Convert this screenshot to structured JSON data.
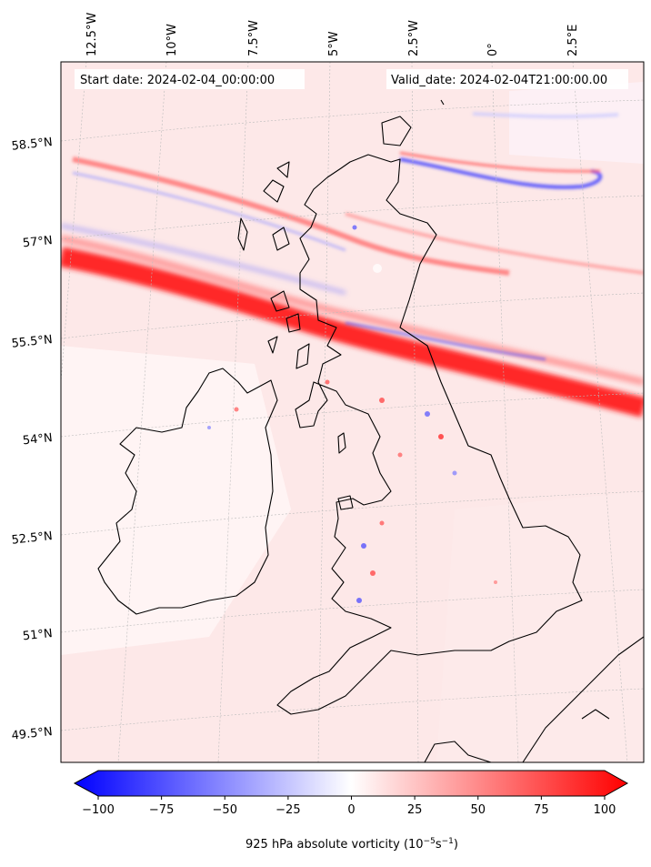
{
  "map": {
    "start_date": "Start date: 2024-02-04_00:00:00",
    "valid_date": "Valid_date: 2024-02-04T21:00:00.00",
    "lon_labels": [
      "12.5°W",
      "10°W",
      "7.5°W",
      "5°W",
      "2.5°W",
      "0°",
      "2.5°E"
    ],
    "lat_labels": [
      "58.5°N",
      "57°N",
      "55.5°N",
      "54°N",
      "52.5°N",
      "51°N",
      "49.5°N"
    ],
    "field": "925 hPa absolute vorticity",
    "region": "British Isles"
  },
  "colorbar": {
    "ticks": [
      "−100",
      "−75",
      "−50",
      "−25",
      "0",
      "25",
      "50",
      "75",
      "100"
    ],
    "min": -100,
    "max": 100,
    "label_main": "925 hPa absolute vorticity (10",
    "label_exp1": "−5",
    "label_mid": "s",
    "label_exp2": "−1",
    "label_end": ")",
    "colors": {
      "negative": "#0000ff",
      "zero": "#ffffff",
      "positive": "#ff0000"
    }
  }
}
